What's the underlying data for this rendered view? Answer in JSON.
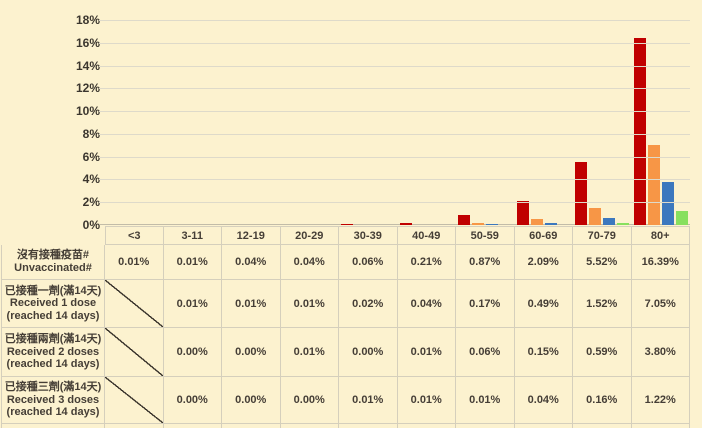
{
  "colors": {
    "background": "#FCF2CF",
    "gridline": "#DEDACA",
    "axis_line": "#C2BCA8",
    "table_border": "#D5CFBC",
    "text": "#453E36",
    "series": {
      "unvaccinated": "#C00000",
      "dose1": "#F79646",
      "dose2": "#3C78BE",
      "dose3": "#87E05E"
    }
  },
  "chart_data": {
    "type": "bar",
    "title": "",
    "xlabel": "",
    "ylabel": "",
    "categories": [
      "<3",
      "3-11",
      "12-19",
      "20-29",
      "30-39",
      "40-49",
      "50-59",
      "60-69",
      "70-79",
      "80+"
    ],
    "series": [
      {
        "name": "沒有接種疫苗# Unvaccinated#",
        "color_key": "unvaccinated",
        "values": [
          0.01,
          0.01,
          0.04,
          0.04,
          0.06,
          0.21,
          0.87,
          2.09,
          5.52,
          16.39
        ]
      },
      {
        "name": "已接種一劑(滿14天) Received 1 dose (reached 14 days)",
        "color_key": "dose1",
        "values": [
          null,
          0.01,
          0.01,
          0.01,
          0.02,
          0.04,
          0.17,
          0.49,
          1.52,
          7.05
        ]
      },
      {
        "name": "已接種兩劑(滿14天) Received 2 doses (reached 14 days)",
        "color_key": "dose2",
        "values": [
          null,
          0.0,
          0.0,
          0.01,
          0.0,
          0.01,
          0.06,
          0.15,
          0.59,
          3.8
        ]
      },
      {
        "name": "已接種三劑(滿14天) Received 3 doses (reached 14 days)",
        "color_key": "dose3",
        "values": [
          null,
          0.0,
          0.0,
          0.0,
          0.01,
          0.01,
          0.01,
          0.04,
          0.16,
          1.22
        ]
      }
    ],
    "ylim": [
      0,
      18
    ],
    "ytick_step": 2,
    "ytick_labels": [
      "0%",
      "2%",
      "4%",
      "6%",
      "8%",
      "10%",
      "12%",
      "14%",
      "16%",
      "18%"
    ],
    "grid": true,
    "legend_position": "none"
  },
  "table": {
    "header": [
      "<3",
      "3-11",
      "12-19",
      "20-29",
      "30-39",
      "40-49",
      "50-59",
      "60-69",
      "70-79",
      "80+"
    ],
    "rows": [
      {
        "label_lines": [
          "沒有接種疫苗#",
          "Unvaccinated#"
        ],
        "series_key": "unvaccinated",
        "cells": [
          "0.01%",
          "0.01%",
          "0.04%",
          "0.04%",
          "0.06%",
          "0.21%",
          "0.87%",
          "2.09%",
          "5.52%",
          "16.39%"
        ]
      },
      {
        "label_lines": [
          "已接種一劑(滿14天)",
          "Received 1 dose",
          "(reached 14 days)"
        ],
        "series_key": "dose1",
        "cells": [
          null,
          "0.01%",
          "0.01%",
          "0.01%",
          "0.02%",
          "0.04%",
          "0.17%",
          "0.49%",
          "1.52%",
          "7.05%"
        ]
      },
      {
        "label_lines": [
          "已接種兩劑(滿14天)",
          "Received 2 doses",
          "(reached 14 days)"
        ],
        "series_key": "dose2",
        "cells": [
          null,
          "0.00%",
          "0.00%",
          "0.01%",
          "0.00%",
          "0.01%",
          "0.06%",
          "0.15%",
          "0.59%",
          "3.80%"
        ]
      },
      {
        "label_lines": [
          "已接種三劑(滿14天)",
          "Received 3 doses",
          "(reached 14 days)"
        ],
        "series_key": "dose3",
        "cells": [
          null,
          "0.00%",
          "0.00%",
          "0.00%",
          "0.01%",
          "0.01%",
          "0.01%",
          "0.04%",
          "0.16%",
          "1.22%"
        ]
      }
    ]
  }
}
